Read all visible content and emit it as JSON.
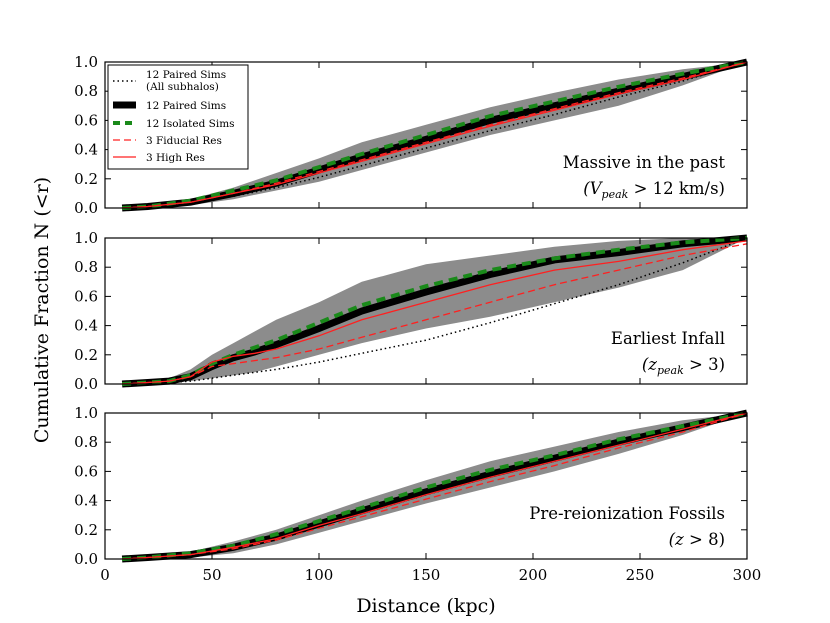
{
  "chart_data": {
    "type": "line",
    "xlabel": "Distance (kpc)",
    "ylabel": "Cumulative Fraction N (<r)",
    "xlim": [
      0,
      300
    ],
    "ylim": [
      0,
      1
    ],
    "x_ticks": [
      "0",
      "50",
      "100",
      "150",
      "200",
      "250",
      "300"
    ],
    "y_ticks": [
      "0.0",
      "0.2",
      "0.4",
      "0.6",
      "0.8",
      "1.0"
    ],
    "grid": false,
    "legend": {
      "placement": "top-left",
      "entries": [
        {
          "line1": "12 Paired Sims",
          "line2": "(All subhalos)",
          "style": "black-dotted"
        },
        {
          "line1": "12 Paired Sims",
          "style": "black-thick"
        },
        {
          "line1": "12 Isolated Sims",
          "style": "green-dashed"
        },
        {
          "line1": "3 Fiducial Res",
          "style": "red-dashed"
        },
        {
          "line1": "3 High Res",
          "style": "red-solid"
        }
      ]
    },
    "colors": {
      "band": "#8c8c8c",
      "paired": "#000000",
      "isolated": "#1a8a1a",
      "fiducial": "#ff2020",
      "highres": "#ff2020",
      "all_subhalos": "#000000"
    },
    "panels": [
      {
        "annotation_line1": "Massive in the past",
        "annotation_math": {
          "base": "(V",
          "sub": "peak",
          "rest": " > 12 km/s)"
        },
        "x": [
          8,
          20,
          40,
          60,
          80,
          100,
          120,
          150,
          180,
          210,
          240,
          270,
          300
        ],
        "paired": [
          0.0,
          0.01,
          0.04,
          0.1,
          0.17,
          0.26,
          0.35,
          0.47,
          0.6,
          0.7,
          0.8,
          0.9,
          1.0
        ],
        "band_low": [
          0.0,
          0.0,
          0.02,
          0.06,
          0.12,
          0.18,
          0.26,
          0.38,
          0.5,
          0.6,
          0.7,
          0.84,
          1.0
        ],
        "band_high": [
          0.01,
          0.02,
          0.06,
          0.14,
          0.24,
          0.34,
          0.45,
          0.57,
          0.69,
          0.79,
          0.88,
          0.95,
          1.0
        ],
        "isolated": [
          0.0,
          0.01,
          0.05,
          0.12,
          0.19,
          0.28,
          0.37,
          0.5,
          0.63,
          0.73,
          0.83,
          0.92,
          1.0
        ],
        "fiducial": [
          0.0,
          0.01,
          0.04,
          0.1,
          0.17,
          0.25,
          0.33,
          0.45,
          0.57,
          0.68,
          0.79,
          0.89,
          1.0
        ],
        "highres": [
          0.0,
          0.01,
          0.04,
          0.1,
          0.16,
          0.24,
          0.32,
          0.44,
          0.56,
          0.67,
          0.78,
          0.88,
          1.0
        ],
        "all_subhalos": [
          0.0,
          0.01,
          0.03,
          0.08,
          0.14,
          0.21,
          0.29,
          0.41,
          0.53,
          0.64,
          0.76,
          0.87,
          1.0
        ]
      },
      {
        "annotation_line1": "Earliest Infall",
        "annotation_math": {
          "base": "(z",
          "sub": "peak",
          "rest": " > 3)"
        },
        "x": [
          8,
          20,
          30,
          40,
          50,
          60,
          70,
          80,
          100,
          120,
          150,
          180,
          210,
          240,
          270,
          300
        ],
        "paired": [
          0.0,
          0.01,
          0.02,
          0.05,
          0.12,
          0.18,
          0.22,
          0.27,
          0.38,
          0.5,
          0.63,
          0.75,
          0.85,
          0.9,
          0.96,
          1.0
        ],
        "band_low": [
          0.0,
          0.0,
          0.01,
          0.02,
          0.04,
          0.06,
          0.08,
          0.12,
          0.2,
          0.28,
          0.38,
          0.46,
          0.56,
          0.66,
          0.78,
          1.0
        ],
        "band_high": [
          0.0,
          0.02,
          0.04,
          0.1,
          0.2,
          0.28,
          0.36,
          0.44,
          0.56,
          0.7,
          0.82,
          0.88,
          0.94,
          0.98,
          1.0,
          1.0
        ],
        "isolated": [
          0.0,
          0.01,
          0.02,
          0.06,
          0.14,
          0.2,
          0.25,
          0.3,
          0.42,
          0.54,
          0.67,
          0.78,
          0.86,
          0.92,
          0.97,
          1.0
        ],
        "fiducial": [
          0.0,
          0.01,
          0.02,
          0.05,
          0.12,
          0.14,
          0.16,
          0.18,
          0.24,
          0.32,
          0.44,
          0.56,
          0.68,
          0.78,
          0.88,
          0.96
        ],
        "highres": [
          0.0,
          0.01,
          0.02,
          0.05,
          0.15,
          0.19,
          0.21,
          0.24,
          0.33,
          0.44,
          0.56,
          0.68,
          0.78,
          0.84,
          0.92,
          0.98
        ],
        "all_subhalos": [
          0.0,
          0.0,
          0.01,
          0.02,
          0.04,
          0.06,
          0.08,
          0.1,
          0.15,
          0.21,
          0.3,
          0.42,
          0.55,
          0.68,
          0.83,
          1.0
        ]
      },
      {
        "annotation_line1": "Pre-reionization Fossils",
        "annotation_math": {
          "base": "(z",
          "sub": "",
          "rest": " > 8)"
        },
        "x": [
          8,
          20,
          40,
          60,
          80,
          100,
          120,
          150,
          180,
          210,
          240,
          270,
          300
        ],
        "paired": [
          0.0,
          0.01,
          0.03,
          0.08,
          0.15,
          0.24,
          0.33,
          0.46,
          0.58,
          0.69,
          0.8,
          0.9,
          1.0
        ],
        "band_low": [
          0.0,
          0.0,
          0.01,
          0.04,
          0.1,
          0.18,
          0.26,
          0.38,
          0.49,
          0.6,
          0.72,
          0.85,
          1.0
        ],
        "band_high": [
          0.01,
          0.02,
          0.05,
          0.12,
          0.2,
          0.3,
          0.4,
          0.54,
          0.67,
          0.77,
          0.87,
          0.95,
          1.0
        ],
        "isolated": [
          0.0,
          0.01,
          0.04,
          0.09,
          0.17,
          0.26,
          0.35,
          0.49,
          0.61,
          0.71,
          0.82,
          0.91,
          1.0
        ],
        "fiducial": [
          0.0,
          0.01,
          0.03,
          0.07,
          0.13,
          0.21,
          0.29,
          0.41,
          0.53,
          0.64,
          0.76,
          0.87,
          1.0
        ],
        "highres": [
          0.0,
          0.01,
          0.03,
          0.08,
          0.14,
          0.23,
          0.31,
          0.44,
          0.56,
          0.67,
          0.78,
          0.89,
          1.0
        ],
        "all_subhalos": [
          0.0,
          0.01,
          0.03,
          0.07,
          0.13,
          0.22,
          0.31,
          0.44,
          0.56,
          0.67,
          0.79,
          0.89,
          1.0
        ]
      }
    ]
  }
}
